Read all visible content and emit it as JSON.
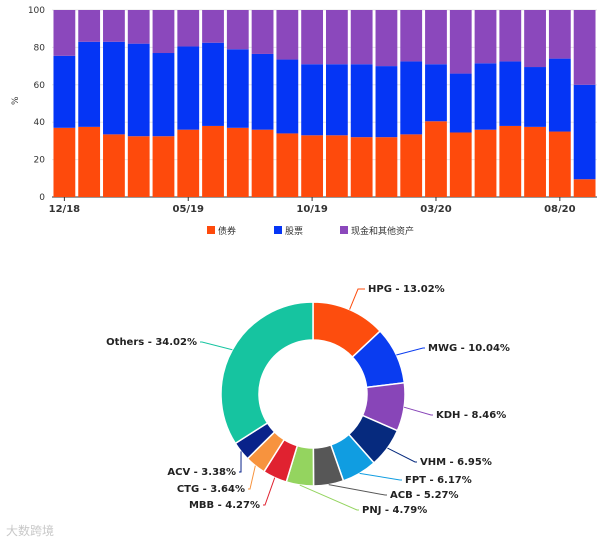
{
  "chart_data": [
    {
      "type": "bar",
      "stacked": true,
      "ylabel": "%",
      "ylim": [
        0,
        100
      ],
      "yticks": [
        0,
        20,
        40,
        60,
        80,
        100
      ],
      "categories": [
        "12/18",
        "01/19",
        "02/19",
        "03/19",
        "04/19",
        "05/19",
        "06/19",
        "07/19",
        "08/19",
        "09/19",
        "10/19",
        "11/19",
        "12/19",
        "01/20",
        "02/20",
        "03/20",
        "04/20",
        "05/20",
        "06/20",
        "07/20",
        "08/20",
        "09/20"
      ],
      "xtick_labels": [
        {
          "index": 0,
          "text": "12/18"
        },
        {
          "index": 5,
          "text": "05/19"
        },
        {
          "index": 10,
          "text": "10/19"
        },
        {
          "index": 15,
          "text": "03/20"
        },
        {
          "index": 20,
          "text": "08/20"
        }
      ],
      "series": [
        {
          "name": "债券",
          "color": "#fe4a0c",
          "values": [
            37,
            37.5,
            33.5,
            32.5,
            32.5,
            36,
            38,
            37,
            36,
            34,
            33,
            33,
            32,
            32,
            33.5,
            40.5,
            34.5,
            36,
            38,
            37.5,
            35,
            9.5
          ]
        },
        {
          "name": "股票",
          "color": "#0535f5",
          "values": [
            38.5,
            45.5,
            49.5,
            49.5,
            44.5,
            44.5,
            44.5,
            42,
            40.5,
            39.5,
            38,
            38,
            39,
            38,
            39,
            30.5,
            31.5,
            35.5,
            34.5,
            32,
            39,
            50.5
          ]
        },
        {
          "name": "现金和其他资产",
          "color": "#8b48bc",
          "values": [
            24.5,
            17,
            17,
            18,
            23,
            19.5,
            17.5,
            21,
            23.5,
            26.5,
            29,
            29,
            29,
            30,
            27.5,
            29,
            34,
            28.5,
            27.5,
            30.5,
            26,
            40
          ]
        }
      ]
    },
    {
      "type": "pie",
      "donut": true,
      "slices": [
        {
          "name": "HPG",
          "value": 13.02,
          "label": "HPG - 13.02%",
          "color": "#fd4d0e"
        },
        {
          "name": "MWG",
          "value": 10.04,
          "label": "MWG - 10.04%",
          "color": "#0a3cf0"
        },
        {
          "name": "KDH",
          "value": 8.46,
          "label": "KDH - 8.46%",
          "color": "#8845b8"
        },
        {
          "name": "VHM",
          "value": 6.95,
          "label": "VHM - 6.95%",
          "color": "#062a7e"
        },
        {
          "name": "FPT",
          "value": 6.17,
          "label": "FPT - 6.17%",
          "color": "#109de1"
        },
        {
          "name": "ACB",
          "value": 5.27,
          "label": "ACB - 5.27%",
          "color": "#575757"
        },
        {
          "name": "PNJ",
          "value": 4.79,
          "label": "PNJ - 4.79%",
          "color": "#94d45f"
        },
        {
          "name": "MBB",
          "value": 4.27,
          "label": "MBB - 4.27%",
          "color": "#e02230"
        },
        {
          "name": "CTG",
          "value": 3.64,
          "label": "CTG - 3.64%",
          "color": "#f7933e"
        },
        {
          "name": "ACV",
          "value": 3.38,
          "label": "ACV - 3.38%",
          "color": "#09228a"
        },
        {
          "name": "Others",
          "value": 34.02,
          "label": "Others - 34.02%",
          "color": "#16c4a0"
        }
      ]
    }
  ],
  "watermark": "大数跨境"
}
